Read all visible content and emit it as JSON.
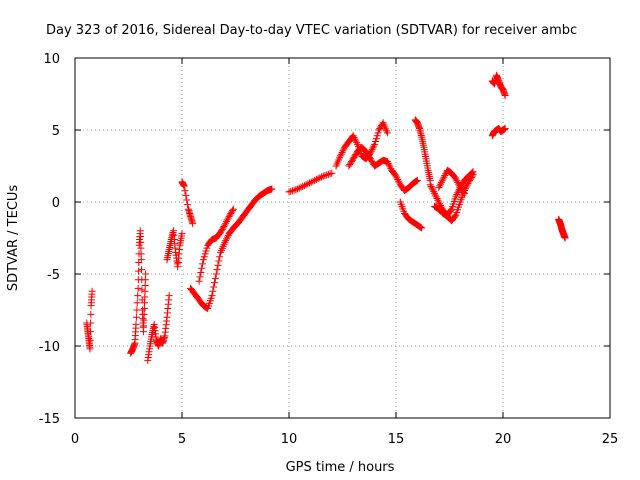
{
  "chart_data": {
    "type": "scatter",
    "title": "Day 323 of 2016, Sidereal Day-to-day VTEC variation (SDTVAR) for receiver ambc",
    "xlabel": "GPS time / hours",
    "ylabel": "SDTVAR / TECUs",
    "xlim": [
      0,
      25
    ],
    "ylim": [
      -15,
      10
    ],
    "xticks": [
      "0",
      "5",
      "10",
      "15",
      "20",
      "25"
    ],
    "yticks": [
      "-15",
      "-10",
      "-5",
      "0",
      "5",
      "10"
    ],
    "grid": true,
    "marker": "+",
    "color": "#ff0000",
    "series": [
      {
        "name": "s1",
        "x": [
          0.55,
          0.6,
          0.65,
          0.7,
          0.75,
          0.8
        ],
        "y": [
          -8.4,
          -9.0,
          -9.6,
          -10.2,
          -7.2,
          -6.2
        ]
      },
      {
        "name": "s2",
        "x": [
          2.6,
          2.7,
          2.8,
          2.85,
          2.95,
          3.0,
          3.05,
          3.1,
          3.15,
          3.2,
          3.25,
          3.3
        ],
        "y": [
          -10.5,
          -10.2,
          -9.8,
          -8.5,
          -6.0,
          -3.0,
          -2.0,
          -4.0,
          -7.5,
          -9.0,
          -7.0,
          -5.0
        ]
      },
      {
        "name": "s3",
        "x": [
          3.4,
          3.5,
          3.6,
          3.7,
          3.8,
          3.9,
          4.0,
          4.1,
          4.2,
          4.3,
          4.4
        ],
        "y": [
          -11.0,
          -10.0,
          -9.2,
          -8.5,
          -9.6,
          -10.0,
          -9.5,
          -9.8,
          -9.3,
          -8.0,
          -6.5
        ]
      },
      {
        "name": "s4",
        "x": [
          4.3,
          4.4,
          4.5,
          4.6,
          4.7,
          4.8,
          4.9,
          5.0
        ],
        "y": [
          -4.0,
          -3.3,
          -2.6,
          -2.0,
          -3.5,
          -4.5,
          -3.0,
          -2.2
        ]
      },
      {
        "name": "s5",
        "x": [
          5.0,
          5.1,
          5.3,
          5.4,
          5.5
        ],
        "y": [
          1.4,
          1.1,
          -0.5,
          -1.0,
          -1.5
        ]
      },
      {
        "name": "s6",
        "x": [
          5.4,
          5.6,
          5.8,
          6.0,
          6.2,
          6.4,
          6.6,
          6.8,
          7.0,
          7.2,
          7.4,
          7.6,
          7.8,
          8.0,
          8.2,
          8.4,
          8.6,
          8.8,
          9.0,
          9.2
        ],
        "y": [
          -6.0,
          -6.4,
          -6.8,
          -7.2,
          -7.4,
          -6.5,
          -5.0,
          -3.5,
          -2.8,
          -2.2,
          -1.8,
          -1.5,
          -1.1,
          -0.7,
          -0.3,
          0.1,
          0.4,
          0.6,
          0.8,
          0.9
        ]
      },
      {
        "name": "s7",
        "x": [
          5.8,
          6.0,
          6.2,
          6.4,
          6.6,
          6.8,
          7.0,
          7.2,
          7.4
        ],
        "y": [
          -5.5,
          -4.0,
          -3.0,
          -2.6,
          -2.5,
          -2.1,
          -1.6,
          -1.0,
          -0.5
        ]
      },
      {
        "name": "s8",
        "x": [
          10.0,
          10.4,
          10.8,
          11.2,
          11.6,
          12.0
        ],
        "y": [
          0.7,
          0.9,
          1.2,
          1.5,
          1.8,
          2.0
        ]
      },
      {
        "name": "s9",
        "x": [
          12.2,
          12.4,
          12.6,
          12.8,
          13.0,
          13.2,
          13.4,
          13.6,
          13.8,
          14.0,
          14.2,
          14.4,
          14.6
        ],
        "y": [
          2.5,
          3.2,
          3.8,
          4.2,
          4.6,
          4.0,
          3.2,
          3.0,
          3.4,
          4.0,
          5.0,
          5.5,
          4.8
        ]
      },
      {
        "name": "s10",
        "x": [
          12.8,
          13.0,
          13.2,
          13.4,
          13.6,
          13.8,
          14.0,
          14.2,
          14.4,
          14.6,
          14.8,
          15.0,
          15.2,
          15.4,
          15.6,
          15.8,
          16.0
        ],
        "y": [
          2.5,
          3.0,
          3.5,
          3.8,
          3.5,
          3.0,
          2.5,
          2.7,
          2.9,
          2.8,
          2.2,
          1.8,
          1.2,
          0.8,
          1.0,
          1.3,
          1.5
        ]
      },
      {
        "name": "s11",
        "x": [
          15.2,
          15.4,
          15.6,
          15.8,
          16.0,
          16.2
        ],
        "y": [
          0.0,
          -0.8,
          -1.2,
          -1.4,
          -1.6,
          -1.8
        ]
      },
      {
        "name": "s12",
        "x": [
          15.9,
          16.0,
          16.1,
          16.2,
          16.3,
          16.4,
          16.5,
          16.6
        ],
        "y": [
          5.7,
          5.5,
          5.1,
          4.5,
          3.8,
          3.0,
          2.2,
          1.5
        ]
      },
      {
        "name": "s13",
        "x": [
          16.6,
          16.8,
          17.0,
          17.2,
          17.4,
          17.6,
          17.8,
          18.0,
          18.2,
          18.4,
          18.6
        ],
        "y": [
          1.2,
          0.6,
          0.0,
          -0.6,
          -0.9,
          -0.5,
          0.4,
          1.0,
          1.5,
          1.8,
          2.1
        ]
      },
      {
        "name": "s14",
        "x": [
          16.8,
          17.0,
          17.2,
          17.4,
          17.6,
          17.8,
          18.0,
          18.2,
          18.4,
          18.6
        ],
        "y": [
          -0.3,
          -0.5,
          -0.8,
          -1.0,
          -1.3,
          -0.9,
          0.0,
          0.8,
          1.4,
          1.9
        ]
      },
      {
        "name": "s15",
        "x": [
          17.0,
          17.2,
          17.4,
          17.6,
          17.8,
          18.0,
          18.2
        ],
        "y": [
          1.0,
          1.6,
          2.2,
          2.0,
          1.6,
          1.0,
          0.6
        ]
      },
      {
        "name": "s16",
        "x": [
          19.5,
          19.6,
          19.7,
          19.8,
          19.9,
          20.0,
          20.1
        ],
        "y": [
          8.4,
          8.2,
          8.8,
          8.4,
          8.0,
          7.8,
          7.4
        ]
      },
      {
        "name": "s17",
        "x": [
          19.5,
          19.6,
          19.7,
          19.8,
          19.9,
          20.0,
          20.1
        ],
        "y": [
          4.6,
          4.9,
          5.0,
          5.1,
          4.9,
          5.0,
          5.1
        ]
      },
      {
        "name": "s18",
        "x": [
          22.6,
          22.65,
          22.7,
          22.75,
          22.8,
          22.85,
          22.9
        ],
        "y": [
          -1.2,
          -1.4,
          -1.6,
          -1.9,
          -2.1,
          -2.3,
          -2.5
        ]
      }
    ]
  }
}
